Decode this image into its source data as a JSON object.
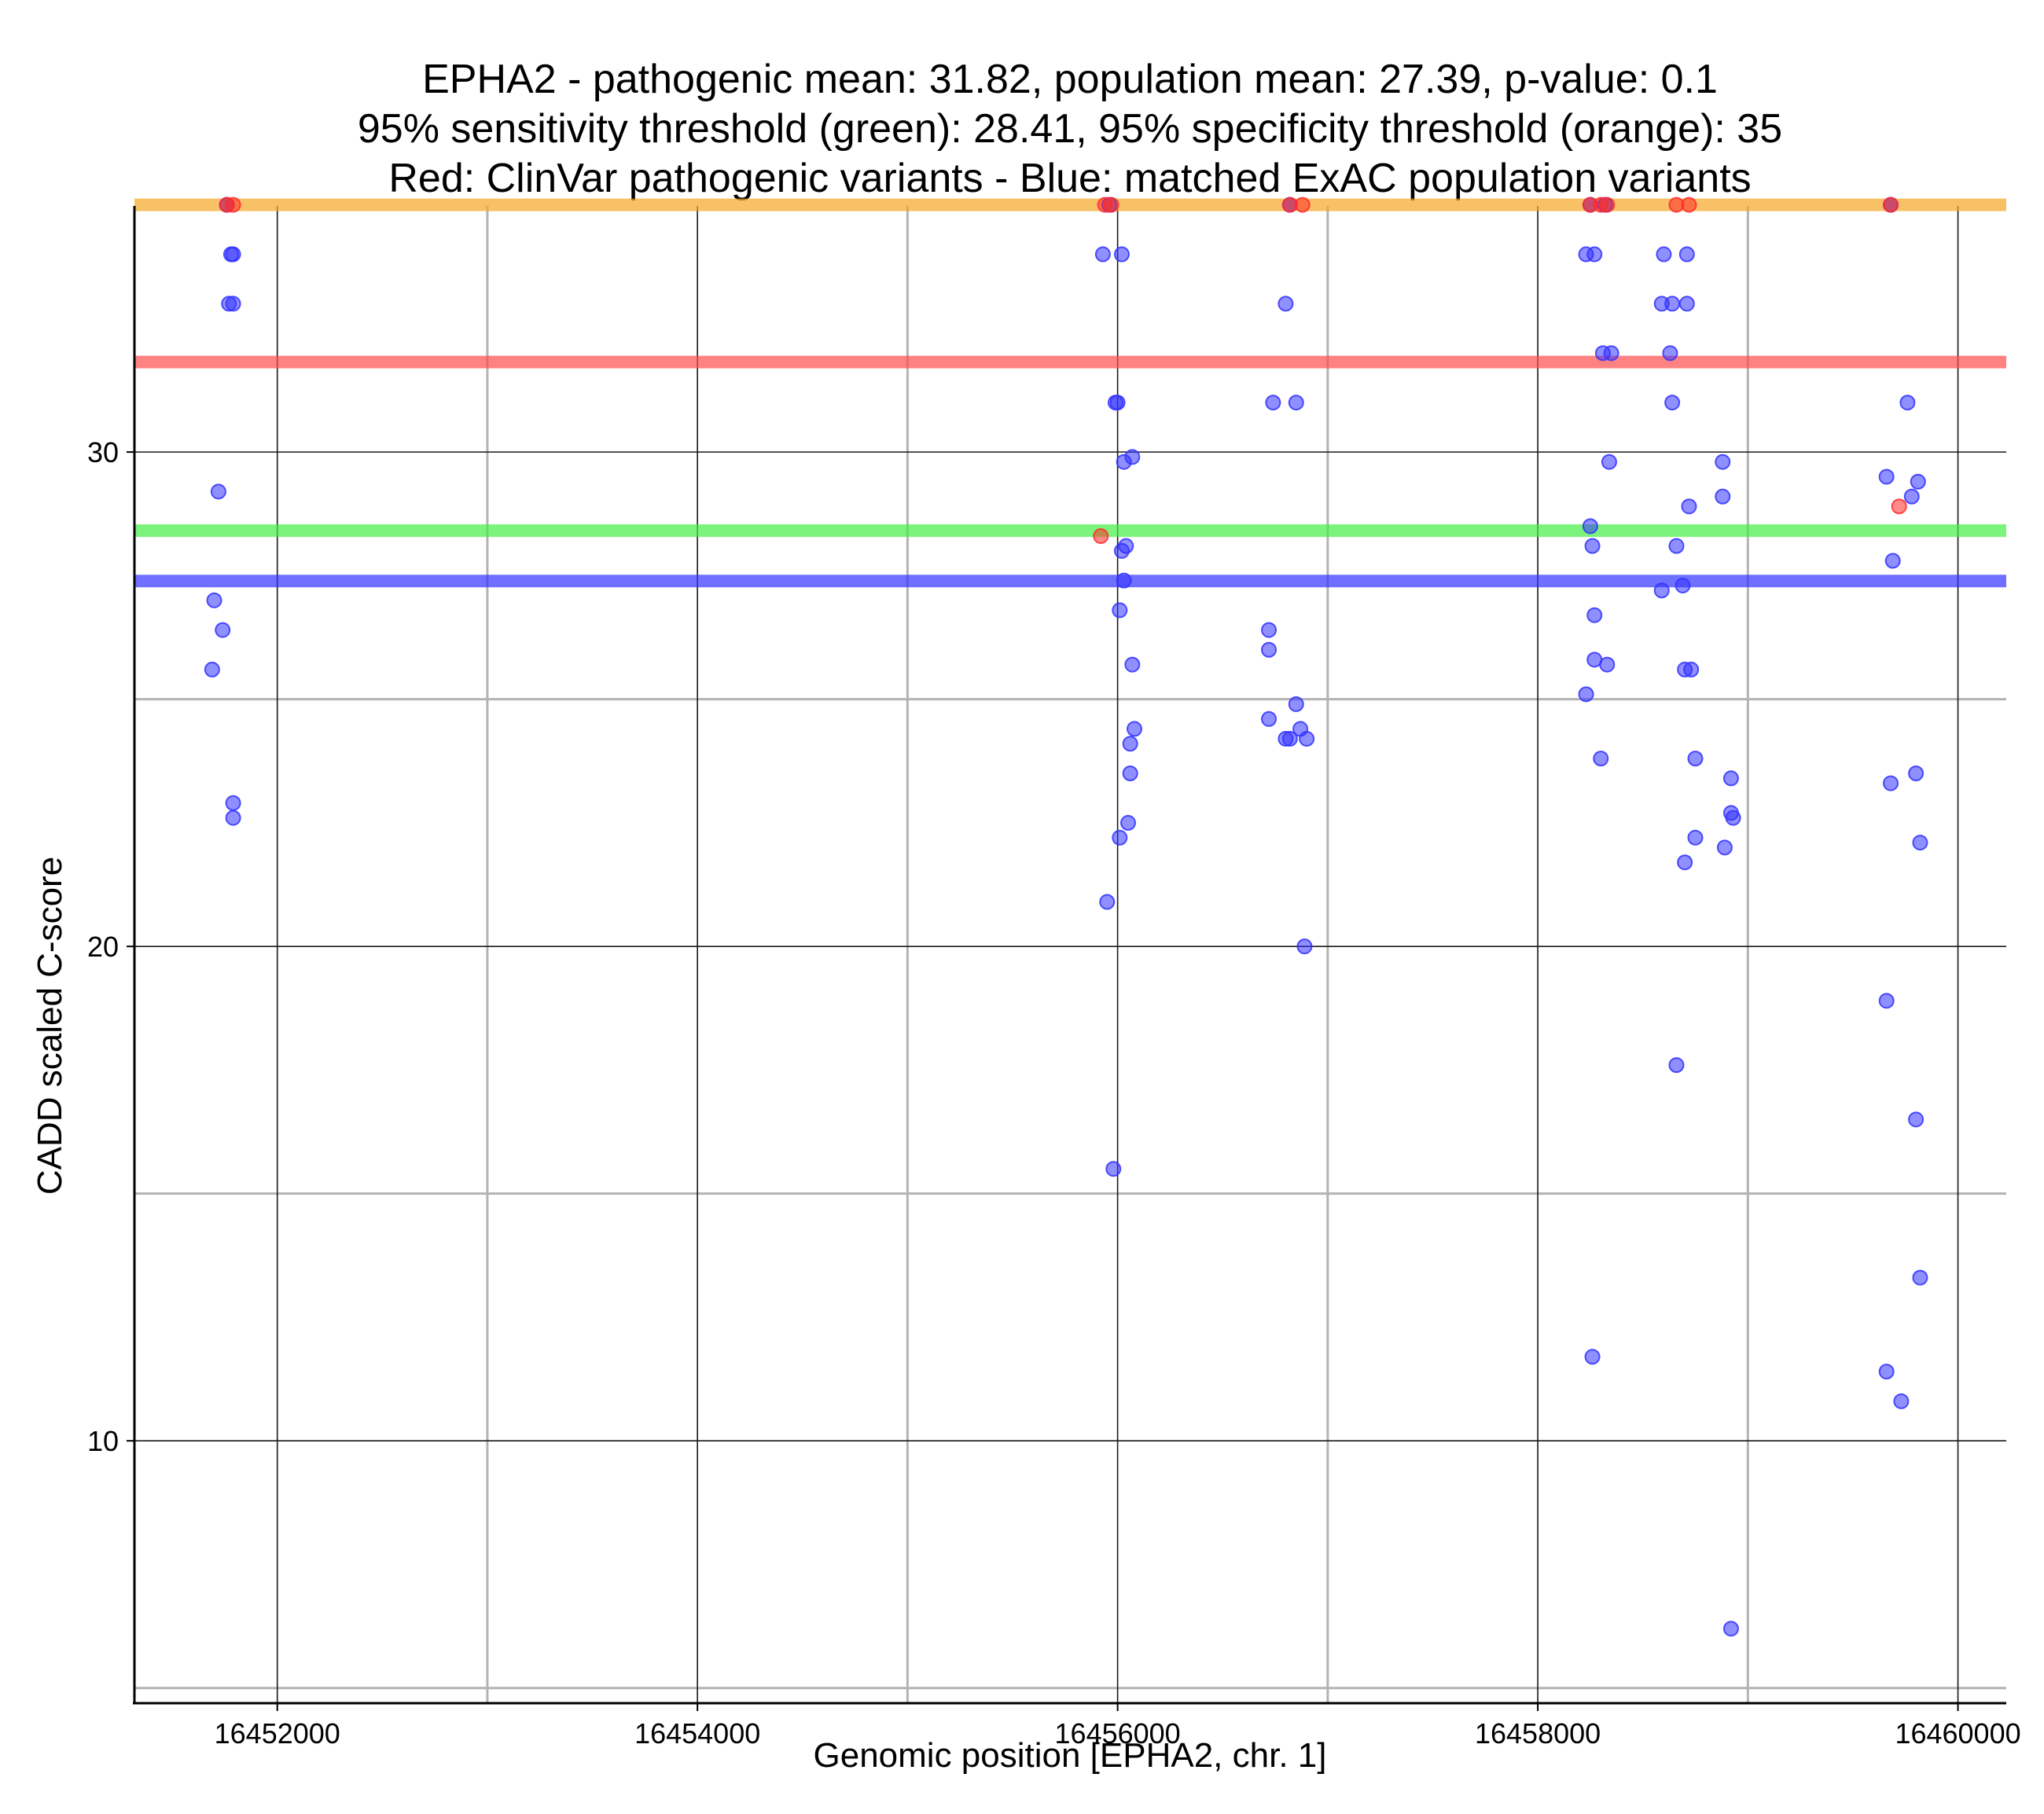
{
  "chart_data": {
    "type": "scatter",
    "title_lines": [
      "EPHA2 - pathogenic mean: 31.82, population mean: 27.39, p-value: 0.1",
      "95% sensitivity threshold (green): 28.41, 95% specificity threshold (orange): 35",
      "Red: ClinVar pathogenic variants - Blue: matched ExAC population variants"
    ],
    "xlabel": "Genomic position [EPHA2, chr. 1]",
    "ylabel": "CADD scaled C-score",
    "xlim": [
      16451320,
      16460230
    ],
    "ylim": [
      4.9,
      35.9
    ],
    "x_ticks": [
      16452000,
      16454000,
      16456000,
      16458000,
      16460000
    ],
    "x_tick_labels": [
      "16452000",
      "16454000",
      "16456000",
      "16458000",
      "16460000"
    ],
    "x_minor_gridlines": [
      16453000,
      16455000,
      16457000,
      16459000
    ],
    "y_ticks": [
      10,
      20,
      30
    ],
    "y_tick_labels": [
      "10",
      "20",
      "30"
    ],
    "y_minor_gridlines": [
      5,
      15,
      25
    ],
    "reference_lines": [
      {
        "name": "95% specificity threshold",
        "value": 35,
        "color": "#f5a623"
      },
      {
        "name": "pathogenic mean",
        "value": 31.82,
        "color": "#ff4d4d"
      },
      {
        "name": "95% sensitivity threshold",
        "value": 28.41,
        "color": "#44ee44"
      },
      {
        "name": "population mean",
        "value": 27.39,
        "color": "#3333ff"
      }
    ],
    "series": [
      {
        "name": "ClinVar pathogenic variants",
        "color": "#ff2a2a",
        "points": [
          [
            16451760,
            35
          ],
          [
            16451790,
            35
          ],
          [
            16455940,
            35
          ],
          [
            16455970,
            35
          ],
          [
            16456820,
            35
          ],
          [
            16456880,
            35
          ],
          [
            16458250,
            35
          ],
          [
            16458300,
            35
          ],
          [
            16458330,
            35
          ],
          [
            16458660,
            35
          ],
          [
            16458720,
            35
          ],
          [
            16459680,
            35
          ],
          [
            16455920,
            28.3
          ],
          [
            16459720,
            28.9
          ]
        ]
      },
      {
        "name": "matched ExAC population variants",
        "color": "#3333ff",
        "points": [
          [
            16451760,
            35
          ],
          [
            16451780,
            34
          ],
          [
            16451790,
            34
          ],
          [
            16451770,
            33
          ],
          [
            16451790,
            33
          ],
          [
            16451720,
            29.2
          ],
          [
            16451700,
            27
          ],
          [
            16451740,
            26.4
          ],
          [
            16451690,
            25.6
          ],
          [
            16451790,
            22.9
          ],
          [
            16451790,
            22.6
          ],
          [
            16455960,
            35
          ],
          [
            16455930,
            34
          ],
          [
            16456020,
            34
          ],
          [
            16455990,
            31
          ],
          [
            16456000,
            31
          ],
          [
            16456030,
            29.8
          ],
          [
            16456070,
            29.9
          ],
          [
            16456020,
            28
          ],
          [
            16456040,
            28.1
          ],
          [
            16456030,
            27.4
          ],
          [
            16456010,
            26.8
          ],
          [
            16456070,
            25.7
          ],
          [
            16456080,
            24.4
          ],
          [
            16456060,
            24.1
          ],
          [
            16456060,
            23.5
          ],
          [
            16456050,
            22.5
          ],
          [
            16456010,
            22.2
          ],
          [
            16455950,
            20.9
          ],
          [
            16455980,
            15.5
          ],
          [
            16456820,
            35
          ],
          [
            16456800,
            33
          ],
          [
            16456740,
            31
          ],
          [
            16456850,
            31
          ],
          [
            16456720,
            26.4
          ],
          [
            16456720,
            26
          ],
          [
            16456850,
            24.9
          ],
          [
            16456720,
            24.6
          ],
          [
            16456870,
            24.4
          ],
          [
            16456800,
            24.2
          ],
          [
            16456820,
            24.2
          ],
          [
            16456900,
            24.2
          ],
          [
            16456890,
            20
          ],
          [
            16458250,
            35
          ],
          [
            16458320,
            35
          ],
          [
            16458230,
            34
          ],
          [
            16458270,
            34
          ],
          [
            16458310,
            32
          ],
          [
            16458350,
            32
          ],
          [
            16458340,
            29.8
          ],
          [
            16458250,
            28.5
          ],
          [
            16458260,
            28.1
          ],
          [
            16458270,
            26.7
          ],
          [
            16458270,
            25.8
          ],
          [
            16458330,
            25.7
          ],
          [
            16458230,
            25.1
          ],
          [
            16458300,
            23.8
          ],
          [
            16458260,
            11.7
          ],
          [
            16458600,
            34
          ],
          [
            16458710,
            34
          ],
          [
            16458590,
            33
          ],
          [
            16458640,
            33
          ],
          [
            16458710,
            33
          ],
          [
            16458630,
            32
          ],
          [
            16458640,
            31
          ],
          [
            16458880,
            29.8
          ],
          [
            16458880,
            29.1
          ],
          [
            16458720,
            28.9
          ],
          [
            16458660,
            28.1
          ],
          [
            16458590,
            27.2
          ],
          [
            16458690,
            27.3
          ],
          [
            16458700,
            25.6
          ],
          [
            16458730,
            25.6
          ],
          [
            16458750,
            23.8
          ],
          [
            16458920,
            23.4
          ],
          [
            16458920,
            22.7
          ],
          [
            16458930,
            22.6
          ],
          [
            16458750,
            22.2
          ],
          [
            16458890,
            22
          ],
          [
            16458700,
            21.7
          ],
          [
            16458660,
            17.6
          ],
          [
            16458920,
            6.2
          ],
          [
            16459680,
            35
          ],
          [
            16459760,
            31
          ],
          [
            16459660,
            29.5
          ],
          [
            16459810,
            29.4
          ],
          [
            16459780,
            29.1
          ],
          [
            16459690,
            27.8
          ],
          [
            16459800,
            23.5
          ],
          [
            16459680,
            23.3
          ],
          [
            16459820,
            22.1
          ],
          [
            16459660,
            18.9
          ],
          [
            16459800,
            16.5
          ],
          [
            16459820,
            13.3
          ],
          [
            16459660,
            11.4
          ],
          [
            16459730,
            10.8
          ]
        ]
      }
    ]
  }
}
